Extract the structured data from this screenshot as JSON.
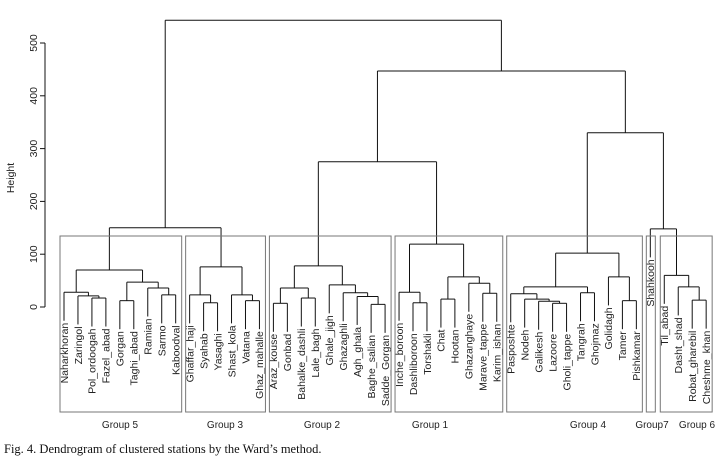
{
  "chart_data": {
    "type": "dendrogram",
    "ylabel": "Height",
    "ylim": [
      0,
      500
    ],
    "yticks": [
      0,
      100,
      200,
      300,
      400,
      500
    ],
    "grid": false,
    "caption": "Fig. 4. Dendrogram of clustered stations by the Ward’s method.",
    "groups": [
      {
        "name": "Group 5",
        "leaves": [
          "Naharkhoran",
          "Zaringol",
          "Pol_ordoogah",
          "Fazel_abad",
          "Gorgan",
          "Taghi_abad",
          "Ramian",
          "Sarmo",
          "Kaboodval"
        ]
      },
      {
        "name": "Group 3",
        "leaves": [
          "Ghaffar_haji",
          "Syahab",
          "Yasaghi",
          "Shast_kola",
          "Vatana",
          "Ghaz_mahalle"
        ]
      },
      {
        "name": "Group 2",
        "leaves": [
          "Araz_kouse",
          "Gonbad",
          "Bahalke_dashli",
          "Lale_bagh",
          "Ghale_jigh",
          "Ghazaghli",
          "Agh_ghala",
          "Baghe_salian",
          "Sadde_Gorgan"
        ]
      },
      {
        "name": "Group 1",
        "leaves": [
          "Inche_boroon",
          "Dashliboroon",
          "Torshakli",
          "Chat",
          "Hootan",
          "Ghazanghaye",
          "Marave_tappe",
          "Karim_ishan"
        ]
      },
      {
        "name": "Group 4",
        "leaves": [
          "Pasposhte",
          "Nodeh",
          "Galikesh",
          "Lazoore",
          "Gholi_tappe",
          "Tangrah",
          "Ghojmaz",
          "Golidagh",
          "Tamer",
          "Pishkamar"
        ]
      },
      {
        "name": "Group7",
        "leaves": [
          "Shahkooh"
        ]
      },
      {
        "name": "Group 6",
        "leaves": [
          "Til_abad",
          "Dasht_shad",
          "Robat_gharebil",
          "Cheshme_khan"
        ]
      }
    ],
    "tree": {
      "h": 543,
      "c": [
        {
          "h": 150,
          "c": [
            {
              "h": 70,
              "c": [
                {
                  "h": 28,
                  "c": [
                    "Naharkhoran",
                    {
                      "h": 21,
                      "c": [
                        "Zaringol",
                        {
                          "h": 17,
                          "c": [
                            "Pol_ordoogah",
                            "Fazel_abad"
                          ]
                        }
                      ]
                    }
                  ]
                },
                {
                  "h": 47,
                  "c": [
                    {
                      "h": 12,
                      "c": [
                        "Gorgan",
                        "Taghi_abad"
                      ]
                    },
                    {
                      "h": 36,
                      "c": [
                        "Ramian",
                        {
                          "h": 23,
                          "c": [
                            "Sarmo",
                            "Kaboodval"
                          ]
                        }
                      ]
                    }
                  ]
                }
              ]
            },
            {
              "h": 76,
              "c": [
                {
                  "h": 23,
                  "c": [
                    "Ghaffar_haji",
                    {
                      "h": 8,
                      "c": [
                        "Syahab",
                        "Yasaghi"
                      ]
                    }
                  ]
                },
                {
                  "h": 23,
                  "c": [
                    "Shast_kola",
                    {
                      "h": 12,
                      "c": [
                        "Vatana",
                        "Ghaz_mahalle"
                      ]
                    }
                  ]
                }
              ]
            }
          ]
        },
        {
          "h": 447,
          "c": [
            {
              "h": 275,
              "c": [
                {
                  "h": 78,
                  "c": [
                    {
                      "h": 36,
                      "c": [
                        {
                          "h": 7,
                          "c": [
                            "Araz_kouse",
                            "Gonbad"
                          ]
                        },
                        {
                          "h": 17,
                          "c": [
                            "Bahalke_dashli",
                            "Lale_bagh"
                          ]
                        }
                      ]
                    },
                    {
                      "h": 42,
                      "c": [
                        "Ghale_jigh",
                        {
                          "h": 27,
                          "c": [
                            "Ghazaghli",
                            {
                              "h": 20,
                              "c": [
                                "Agh_ghala",
                                {
                                  "h": 5,
                                  "c": [
                                    "Baghe_salian",
                                    "Sadde_Gorgan"
                                  ]
                                }
                              ]
                            }
                          ]
                        }
                      ]
                    }
                  ]
                },
                {
                  "h": 119,
                  "c": [
                    {
                      "h": 28,
                      "c": [
                        "Inche_boroon",
                        {
                          "h": 8,
                          "c": [
                            "Dashliboroon",
                            "Torshakli"
                          ]
                        }
                      ]
                    },
                    {
                      "h": 57,
                      "c": [
                        {
                          "h": 15,
                          "c": [
                            "Chat",
                            "Hootan"
                          ]
                        },
                        {
                          "h": 45,
                          "c": [
                            "Ghazanghaye",
                            {
                              "h": 26,
                              "c": [
                                "Marave_tappe",
                                "Karim_ishan"
                              ]
                            }
                          ]
                        }
                      ]
                    }
                  ]
                }
              ]
            },
            {
              "h": 330,
              "c": [
                {
                  "h": 102,
                  "c": [
                    {
                      "h": 38,
                      "c": [
                        {
                          "h": 25,
                          "c": [
                            "Pasposhte",
                            {
                              "h": 15,
                              "c": [
                                "Nodeh",
                                {
                                  "h": 11,
                                  "c": [
                                    "Galikesh",
                                    {
                                      "h": 7,
                                      "c": [
                                        "Lazoore",
                                        "Gholi_tappe"
                                      ]
                                    }
                                  ]
                                }
                              ]
                            }
                          ]
                        },
                        {
                          "h": 27,
                          "c": [
                            "Tangrah",
                            "Ghojmaz"
                          ]
                        }
                      ]
                    },
                    {
                      "h": 57,
                      "c": [
                        "Golidagh",
                        {
                          "h": 12,
                          "c": [
                            "Tamer",
                            "Pishkamar"
                          ]
                        }
                      ]
                    }
                  ]
                },
                {
                  "h": 148,
                  "c": [
                    "Shahkooh",
                    {
                      "h": 60,
                      "c": [
                        "Til_abad",
                        {
                          "h": 38,
                          "c": [
                            "Dasht_shad",
                            {
                              "h": 13,
                              "c": [
                                "Robat_gharebil",
                                "Cheshme_khan"
                              ]
                            }
                          ]
                        }
                      ]
                    }
                  ]
                }
              ]
            }
          ]
        }
      ]
    },
    "hang": 54
  }
}
